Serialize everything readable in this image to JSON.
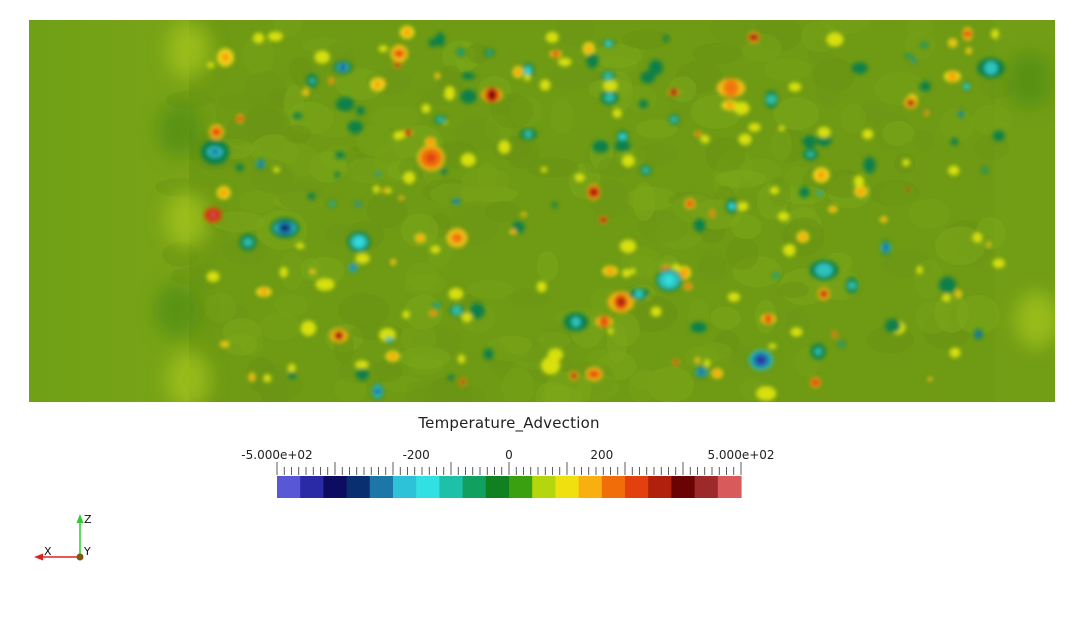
{
  "colorbar": {
    "title": "Temperature_Advection",
    "range": [
      -500,
      500
    ],
    "labels": [
      {
        "text": "-5.000e+02",
        "value": -500
      },
      {
        "text": "-200",
        "value": -200
      },
      {
        "text": "0",
        "value": 0
      },
      {
        "text": "200",
        "value": 200
      },
      {
        "text": "5.000e+02",
        "value": 500
      }
    ],
    "colormap": [
      "#5858d6",
      "#2a2aa6",
      "#0c0c60",
      "#0a2f70",
      "#1d76a8",
      "#2dc2d8",
      "#31e0e0",
      "#1ec0a8",
      "#11a060",
      "#118020",
      "#3aa010",
      "#b4d60c",
      "#f0e010",
      "#f8b010",
      "#f06d0a",
      "#e2400c",
      "#b0200c",
      "#6a0404",
      "#9c2a2a",
      "#d85a5a"
    ]
  },
  "axes": {
    "z_label": "Z",
    "x_label": "X",
    "y_label": "Y",
    "z_color": "#2ecc2e",
    "x_color": "#e02020",
    "origin_color": "#7a5a10"
  },
  "field": {
    "background_color": "#6e9a14"
  }
}
